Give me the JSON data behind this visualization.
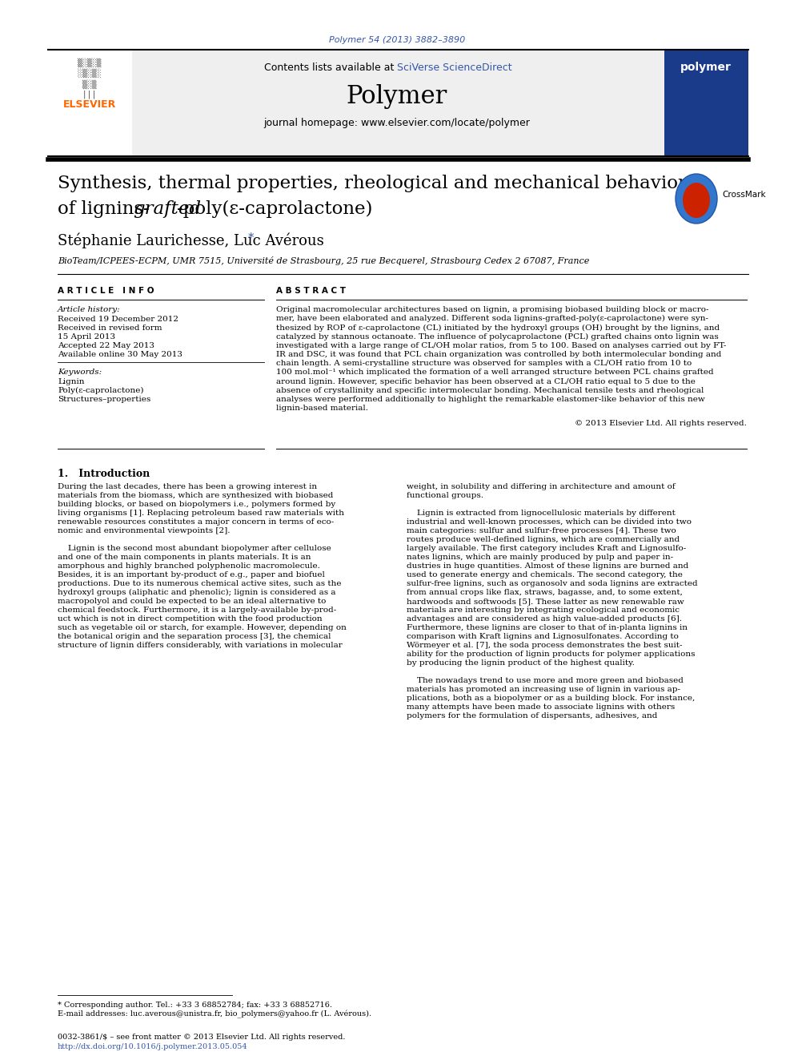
{
  "doi_text": "Polymer 54 (2013) 3882–3890",
  "doi_color": "#3355aa",
  "header_bg": "#f0f0f0",
  "contents_text": "Contents lists available at ",
  "sciverse_text": "SciVerse ScienceDirect",
  "journal_name": "Polymer",
  "journal_homepage": "journal homepage: www.elsevier.com/locate/polymer",
  "elsevier_color": "#ff6600",
  "title_line1": "Synthesis, thermal properties, rheological and mechanical behaviors",
  "title_line2_pre": "of lignins-",
  "title_line2_italic": "grafted",
  "title_line2_post": "-poly(ε-caprolactone)",
  "authors": "Stéphanie Laurichesse, Luc Avérous",
  "affiliation": "BioTeam/ICPEES-ECPM, UMR 7515, Université de Strasbourg, 25 rue Becquerel, Strasbourg Cedex 2 67087, France",
  "article_info_header": "A R T I C L E   I N F O",
  "abstract_header": "A B S T R A C T",
  "article_history_label": "Article history:",
  "received1": "Received 19 December 2012",
  "received2": "Received in revised form",
  "received2b": "15 April 2013",
  "accepted": "Accepted 22 May 2013",
  "available": "Available online 30 May 2013",
  "keywords_label": "Keywords:",
  "keyword1": "Lignin",
  "keyword2": "Poly(ε-caprolactone)",
  "keyword3": "Structures–properties",
  "abstract_lines": [
    "Original macromolecular architectures based on lignin, a promising biobased building block or macro-",
    "mer, have been elaborated and analyzed. Different soda lignins-grafted-poly(ε-caprolactone) were syn-",
    "thesized by ROP of ε-caprolactone (CL) initiated by the hydroxyl groups (OH) brought by the lignins, and",
    "catalyzed by stannous octanoate. The influence of polycaprolactone (PCL) grafted chains onto lignin was",
    "investigated with a large range of CL/OH molar ratios, from 5 to 100. Based on analyses carried out by FT-",
    "IR and DSC, it was found that PCL chain organization was controlled by both intermolecular bonding and",
    "chain length. A semi-crystalline structure was observed for samples with a CL/OH ratio from 10 to",
    "100 mol.mol⁻¹ which implicated the formation of a well arranged structure between PCL chains grafted",
    "around lignin. However, specific behavior has been observed at a CL/OH ratio equal to 5 due to the",
    "absence of crystallinity and specific intermolecular bonding. Mechanical tensile tests and rheological",
    "analyses were performed additionally to highlight the remarkable elastomer-like behavior of this new",
    "lignin-based material."
  ],
  "copyright_text": "© 2013 Elsevier Ltd. All rights reserved.",
  "intro_col1_lines": [
    "During the last decades, there has been a growing interest in",
    "materials from the biomass, which are synthesized with biobased",
    "building blocks, or based on biopolymers i.e., polymers formed by",
    "living organisms [1]. Replacing petroleum based raw materials with",
    "renewable resources constitutes a major concern in terms of eco-",
    "nomic and environmental viewpoints [2].",
    "",
    "    Lignin is the second most abundant biopolymer after cellulose",
    "and one of the main components in plants materials. It is an",
    "amorphous and highly branched polyphenolic macromolecule.",
    "Besides, it is an important by-product of e.g., paper and biofuel",
    "productions. Due to its numerous chemical active sites, such as the",
    "hydroxyl groups (aliphatic and phenolic); lignin is considered as a",
    "macropolyol and could be expected to be an ideal alternative to",
    "chemical feedstock. Furthermore, it is a largely-available by-prod-",
    "uct which is not in direct competition with the food production",
    "such as vegetable oil or starch, for example. However, depending on",
    "the botanical origin and the separation process [3], the chemical",
    "structure of lignin differs considerably, with variations in molecular"
  ],
  "intro_col2_lines": [
    "weight, in solubility and differing in architecture and amount of",
    "functional groups.",
    "",
    "    Lignin is extracted from lignocellulosic materials by different",
    "industrial and well-known processes, which can be divided into two",
    "main categories: sulfur and sulfur-free processes [4]. These two",
    "routes produce well-defined lignins, which are commercially and",
    "largely available. The first category includes Kraft and Lignosulfo-",
    "nates lignins, which are mainly produced by pulp and paper in-",
    "dustries in huge quantities. Almost of these lignins are burned and",
    "used to generate energy and chemicals. The second category, the",
    "sulfur-free lignins, such as organosolv and soda lignins are extracted",
    "from annual crops like flax, straws, bagasse, and, to some extent,",
    "hardwoods and softwoods [5]. These latter as new renewable raw",
    "materials are interesting by integrating ecological and economic",
    "advantages and are considered as high value-added products [6].",
    "Furthermore, these lignins are closer to that of in-planta lignins in",
    "comparison with Kraft lignins and Lignosulfonates. According to",
    "Wörmeyer et al. [7], the soda process demonstrates the best suit-",
    "ability for the production of lignin products for polymer applications",
    "by producing the lignin product of the highest quality.",
    "",
    "    The nowadays trend to use more and more green and biobased",
    "materials has promoted an increasing use of lignin in various ap-",
    "plications, both as a biopolymer or as a building block. For instance,",
    "many attempts have been made to associate lignins with others",
    "polymers for the formulation of dispersants, adhesives, and"
  ],
  "footnote_star": "* Corresponding author. Tel.: +33 3 68852784; fax: +33 3 68852716.",
  "footnote_email": "E-mail addresses: luc.averous@unistra.fr, bio_polymers@yahoo.fr (L. Avérous).",
  "footer_issn": "0032-3861/$ – see front matter © 2013 Elsevier Ltd. All rights reserved.",
  "footer_doi": "http://dx.doi.org/10.1016/j.polymer.2013.05.054",
  "bg_color": "#ffffff",
  "text_color": "#000000",
  "link_color": "#3355aa"
}
